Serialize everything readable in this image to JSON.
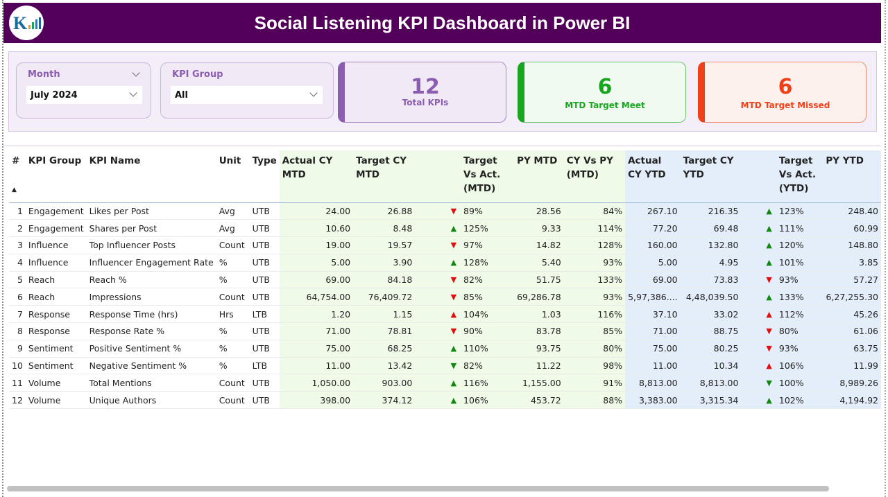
{
  "header": {
    "title": "Social Listening KPI Dashboard in Power BI",
    "logo_icon": "kpi-logo"
  },
  "slicers": {
    "month": {
      "label": "Month",
      "value": "July 2024"
    },
    "kpi_group": {
      "label": "KPI Group",
      "value": "All"
    }
  },
  "cards": [
    {
      "value": "12",
      "label": "Total KPIs",
      "color": "#8a5db0"
    },
    {
      "value": "6",
      "label": "MTD Target Meet",
      "color": "#1aa521"
    },
    {
      "value": "6",
      "label": "MTD Target Missed",
      "color": "#f0401a"
    }
  ],
  "colors": {
    "up_good": "#118811",
    "down_bad": "#e01010",
    "mtd_bg": "#f0fae8",
    "ytd_bg": "#e4eefa",
    "header_bg": "#52005a"
  },
  "table": {
    "columns": [
      "#",
      "KPI Group",
      "KPI Name",
      "Unit",
      "Type",
      "Actual CY MTD",
      "Target CY MTD",
      "",
      "Target Vs Act. (MTD)",
      "PY MTD",
      "CY Vs PY (MTD)",
      "Actual CY YTD",
      "Target CY YTD",
      "",
      "Target Vs Act. (YTD)",
      "PY YTD"
    ],
    "rows": [
      [
        "1",
        "Engagement",
        "Likes per Post",
        "Avg",
        "UTB",
        "24.00",
        "26.88",
        "down-red",
        "89%",
        "28.56",
        "84%",
        "267.10",
        "216.35",
        "up-green",
        "123%",
        "248.40"
      ],
      [
        "2",
        "Engagement",
        "Shares per Post",
        "Avg",
        "UTB",
        "10.60",
        "8.48",
        "up-green",
        "125%",
        "9.33",
        "114%",
        "77.20",
        "69.48",
        "up-green",
        "111%",
        "60.99"
      ],
      [
        "3",
        "Influence",
        "Top Influencer Posts",
        "Count",
        "UTB",
        "19.00",
        "19.57",
        "down-red",
        "97%",
        "14.82",
        "128%",
        "160.00",
        "132.80",
        "up-green",
        "120%",
        "148.80"
      ],
      [
        "4",
        "Influence",
        "Influencer Engagement Rate",
        "%",
        "UTB",
        "5.00",
        "3.90",
        "up-green",
        "128%",
        "5.40",
        "93%",
        "5.00",
        "4.95",
        "up-green",
        "101%",
        "3.85"
      ],
      [
        "5",
        "Reach",
        "Reach %",
        "%",
        "UTB",
        "69.00",
        "84.18",
        "down-red",
        "82%",
        "51.75",
        "133%",
        "69.00",
        "73.83",
        "down-red",
        "93%",
        "57.27"
      ],
      [
        "6",
        "Reach",
        "Impressions",
        "Count",
        "UTB",
        "64,754.00",
        "76,409.72",
        "down-red",
        "85%",
        "69,286.78",
        "93%",
        "5,97,386....",
        "4,48,039.50",
        "up-green",
        "133%",
        "6,27,255.30"
      ],
      [
        "7",
        "Response",
        "Response Time (hrs)",
        "Hrs",
        "LTB",
        "1.20",
        "1.15",
        "up-red",
        "104%",
        "1.03",
        "116%",
        "37.10",
        "33.02",
        "up-red",
        "112%",
        "45.26"
      ],
      [
        "8",
        "Response",
        "Response Rate %",
        "%",
        "UTB",
        "71.00",
        "78.81",
        "down-red",
        "90%",
        "83.78",
        "85%",
        "71.00",
        "88.75",
        "down-red",
        "80%",
        "61.06"
      ],
      [
        "9",
        "Sentiment",
        "Positive Sentiment %",
        "%",
        "UTB",
        "75.00",
        "68.25",
        "up-green",
        "110%",
        "93.75",
        "80%",
        "75.00",
        "80.25",
        "down-red",
        "93%",
        "63.75"
      ],
      [
        "10",
        "Sentiment",
        "Negative Sentiment %",
        "%",
        "LTB",
        "11.00",
        "13.42",
        "down-green",
        "82%",
        "11.22",
        "98%",
        "11.00",
        "10.34",
        "up-red",
        "106%",
        "11.99"
      ],
      [
        "11",
        "Volume",
        "Total Mentions",
        "Count",
        "UTB",
        "1,050.00",
        "903.00",
        "up-green",
        "116%",
        "1,155.00",
        "91%",
        "8,813.00",
        "8,813.00",
        "down-green",
        "100%",
        "8,989.26"
      ],
      [
        "12",
        "Volume",
        "Unique Authors",
        "Count",
        "UTB",
        "398.00",
        "374.12",
        "up-green",
        "106%",
        "453.72",
        "88%",
        "3,383.00",
        "3,315.34",
        "up-green",
        "102%",
        "4,194.92"
      ]
    ]
  }
}
